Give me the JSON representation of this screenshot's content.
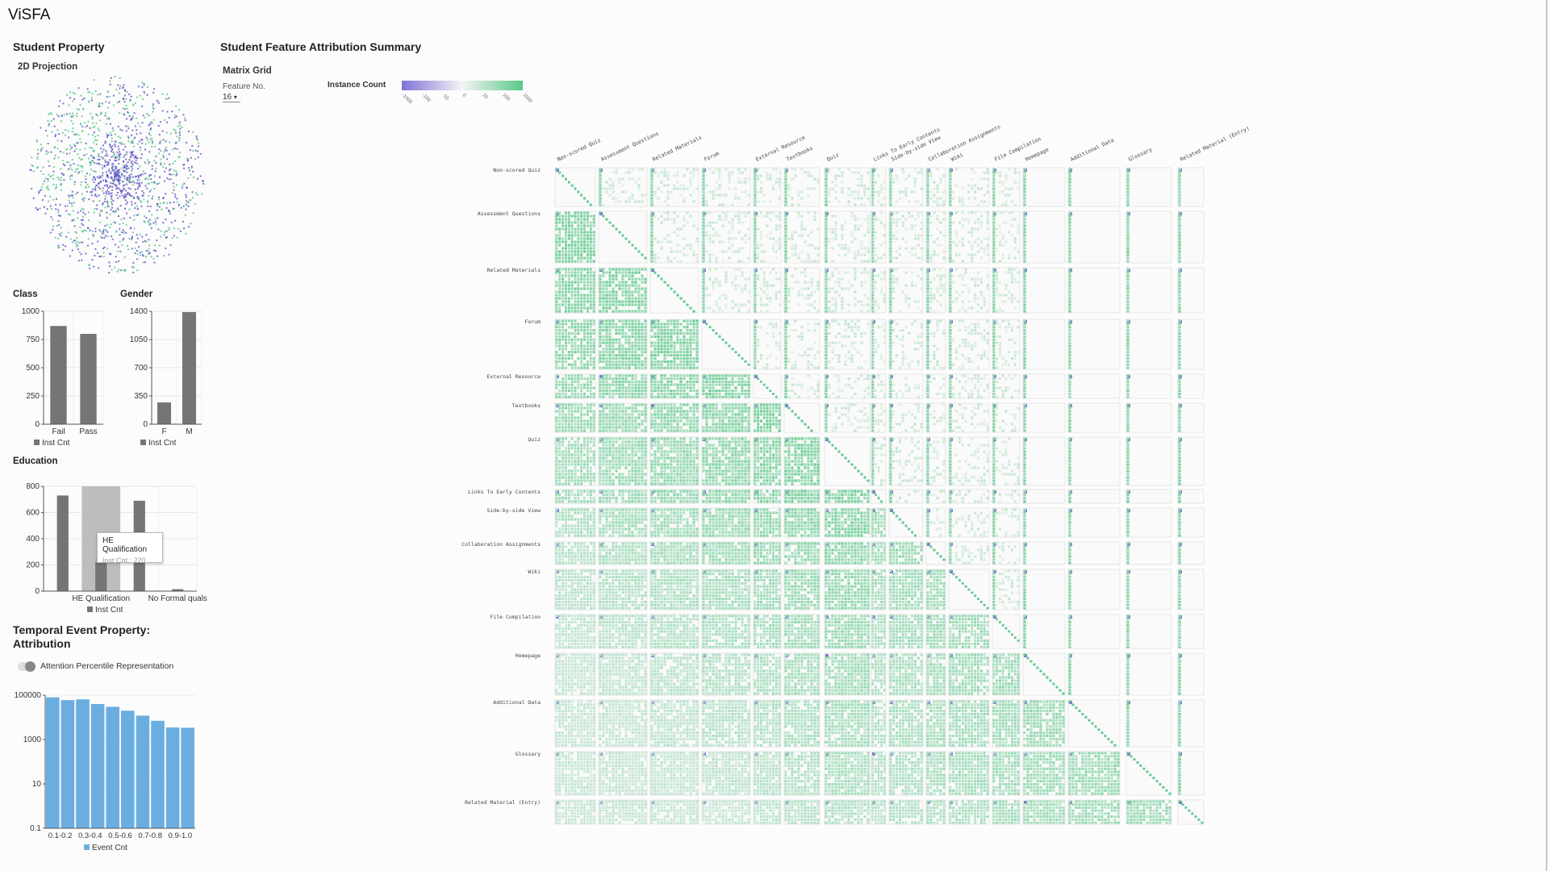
{
  "app": {
    "title": "ViSFA"
  },
  "student_property": {
    "title": "Student Property",
    "projection_title": "2D Projection",
    "colors": {
      "purple": "#6a5acd",
      "green": "#5cc98a"
    }
  },
  "class_chart": {
    "title": "Class",
    "legend": "Inst Cnt",
    "chart_data": {
      "type": "bar",
      "categories": [
        "Fail",
        "Pass"
      ],
      "values": [
        870,
        800
      ],
      "ylim": [
        0,
        1000
      ],
      "yticks": [
        0,
        250,
        500,
        750,
        1000
      ]
    }
  },
  "gender_chart": {
    "title": "Gender",
    "legend": "Inst Cnt",
    "chart_data": {
      "type": "bar",
      "categories": [
        "F",
        "M"
      ],
      "values": [
        270,
        1390
      ],
      "ylim": [
        0,
        1400
      ],
      "yticks": [
        0,
        350,
        700,
        1050,
        1400
      ]
    }
  },
  "education_chart": {
    "title": "Education",
    "legend": "Inst Cnt",
    "chart_data": {
      "type": "bar",
      "categories": [
        "",
        "HE Qualification",
        "",
        "No Formal quals"
      ],
      "values": [
        730,
        220,
        690,
        15
      ],
      "highlighted_index": 1,
      "ylim": [
        0,
        800
      ],
      "yticks": [
        0,
        200,
        400,
        600,
        800
      ]
    },
    "tooltip": {
      "title": "HE Qualification",
      "value": "Inst Cnt : 220"
    }
  },
  "temporal": {
    "title_line1": "Temporal Event Property:",
    "title_line2": "Attribution",
    "toggle_label": "Attention Percentile Representation",
    "legend": "Event Cnt",
    "bar_color": "#6aaee0",
    "chart_data": {
      "type": "bar",
      "scale": "log",
      "categories": [
        "0.0-0.1",
        "0.1-0.2",
        "0.2-0.3",
        "0.3-0.4",
        "0.4-0.5",
        "0.5-0.6",
        "0.6-0.7",
        "0.7-0.8",
        "0.8-0.9",
        "0.9-1.0"
      ],
      "tick_labels": [
        "0.1-0.2",
        "0.3-0.4",
        "0.5-0.6",
        "0.7-0.8",
        "0.9-1.0"
      ],
      "values": [
        80000,
        60000,
        65000,
        40000,
        30000,
        20000,
        12000,
        7000,
        3500,
        3400
      ],
      "ylim": [
        0.1,
        100000
      ],
      "yticks": [
        "0.1",
        "10",
        "1000",
        "100000"
      ]
    }
  },
  "summary": {
    "title": "Student Feature Attribution Summary",
    "matrix_title": "Matrix Grid",
    "feature_label": "Feature No.",
    "feature_value": "16",
    "instance_count_label": "Instance Count",
    "scale_ticks": [
      "-1000",
      "-100",
      "-10",
      "0",
      "10",
      "100",
      "1000"
    ],
    "scale_colors": {
      "low": "#7f72d6",
      "mid": "#f4f4f4",
      "high": "#58c987"
    },
    "features": [
      "Non-scored Quiz",
      "Assessment Questions",
      "Related Materials",
      "Forum",
      "External Resource",
      "Textbooks",
      "Quiz",
      "Links To Early Contents",
      "Side-by-side View",
      "Collaboration Assignments",
      "Wiki",
      "File Compilation",
      "Homepage",
      "Additional Data",
      "Glossary",
      "Related Material (Entry)"
    ]
  }
}
